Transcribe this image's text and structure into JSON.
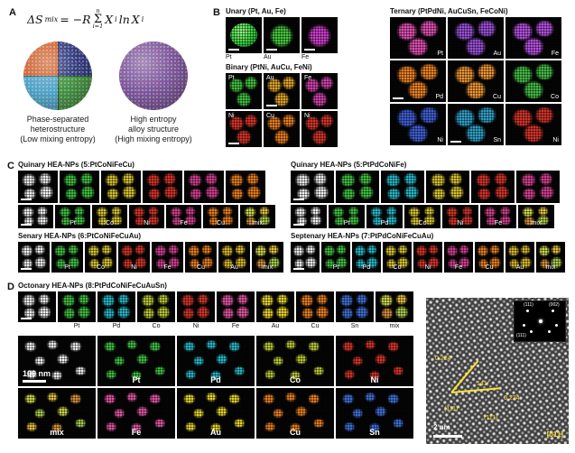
{
  "panel_a": {
    "label": "A",
    "equation": {
      "lhs": "ΔS",
      "lhs_sub": "mix",
      "rel": "= −R",
      "sigma": "Σ",
      "sigma_sup": "n",
      "sigma_sub": "i=1",
      "x1": "X",
      "x1_sub": "i",
      "ln": "ln",
      "x2": "X",
      "x2_sub": "i"
    },
    "left_caption": "Phase-separated\nheterostructure\n(Low mixing entropy)",
    "right_caption": "High entropy\nalloy structure\n(High mixing entropy)"
  },
  "panel_b": {
    "label": "B",
    "unary": {
      "title": "Unary (Pt, Au, Fe)",
      "tiles": [
        {
          "label": "Pt",
          "color": "#35cf3a",
          "type": "solid",
          "scalebar": true
        },
        {
          "label": "Au",
          "color": "#46c83e",
          "scalebar": true
        },
        {
          "label": "Fe",
          "color": "#cc3ecc",
          "scalebar": true
        }
      ]
    },
    "binary": {
      "title": "Binary (PtNi, AuCu, FeNi)",
      "tiles_row1": [
        {
          "label": "Pt",
          "color": "#3fbf3f"
        },
        {
          "label": "Au",
          "color": "#e0a428",
          "scalebar": true
        },
        {
          "label": "Fe",
          "color": "#d041ae"
        }
      ],
      "tiles_row2": [
        {
          "label": "Ni",
          "color": "#d63429",
          "scalebar": true
        },
        {
          "label": "Cu",
          "color": "#e87d1e"
        },
        {
          "label": "Ni",
          "color": "#d63429"
        }
      ]
    },
    "ternary": {
      "title": "Ternary (PtPdNi, AuCuSn, FeCoNi)",
      "tiles_row1": [
        {
          "label": "Pt",
          "color": "#e04fb4"
        },
        {
          "label": "Au",
          "color": "#9a4fd8"
        },
        {
          "label": "Fe",
          "color": "#b44fe0"
        }
      ],
      "tiles_row2": [
        {
          "label": "Pd",
          "color": "#ef8322",
          "scalebar": true
        },
        {
          "label": "Cu",
          "color": "#ef9632"
        },
        {
          "label": "Co",
          "color": "#44bb44"
        }
      ],
      "tiles_row3": [
        {
          "label": "Ni",
          "color": "#3f5fd6"
        },
        {
          "label": "Sn",
          "color": "#2fa0c8",
          "scalebar": true
        },
        {
          "label": "Ni",
          "color": "#d63429"
        }
      ]
    }
  },
  "panel_c": {
    "label": "C",
    "quinary_left": {
      "title": "Quinary HEA-NPs (5:PtCoNiFeCu)",
      "row_top": [
        {
          "type": "haadf",
          "scalebar": true
        },
        {
          "color": "#3fbf3f"
        },
        {
          "color": "#d6c22e"
        },
        {
          "color": "#d63429"
        },
        {
          "color": "#d03f8e"
        },
        {
          "color": "#e87d1e"
        }
      ],
      "row_labeled": [
        {
          "type": "haadf",
          "scalebar": true
        },
        {
          "label": "Pt",
          "color": "#3fbf3f"
        },
        {
          "label": "Co",
          "color": "#d6c22e"
        },
        {
          "label": "Ni",
          "color": "#d63429"
        },
        {
          "label": "Fe",
          "color": "#d03f8e"
        },
        {
          "label": "Cu",
          "color": "#e87d1e"
        },
        {
          "label": "mix",
          "type": "mix"
        }
      ]
    },
    "quinary_right": {
      "title": "Quinary HEA-NPs (5:PtPdCoNiFe)",
      "row_top": [
        {
          "type": "haadf",
          "scalebar": true
        },
        {
          "color": "#3fbf3f"
        },
        {
          "color": "#25b8c8"
        },
        {
          "color": "#d6c22e"
        },
        {
          "color": "#d63429"
        },
        {
          "color": "#d03f8e"
        }
      ],
      "row_labeled": [
        {
          "type": "haadf",
          "scalebar": true
        },
        {
          "label": "Pt",
          "color": "#3fbf3f"
        },
        {
          "label": "Pd",
          "color": "#25b8c8"
        },
        {
          "label": "Co",
          "color": "#d6c22e"
        },
        {
          "label": "Ni",
          "color": "#d63429"
        },
        {
          "label": "Fe",
          "color": "#d03f8e"
        },
        {
          "label": "mix",
          "type": "mix"
        }
      ]
    },
    "senary": {
      "title": "Senary HEA-NPs (6:PtCoNiFeCuAu)",
      "row": [
        {
          "type": "haadf",
          "scalebar": true
        },
        {
          "label": "Pt",
          "color": "#3fbf3f"
        },
        {
          "label": "Co",
          "color": "#d6c22e"
        },
        {
          "label": "Ni",
          "color": "#d63429"
        },
        {
          "label": "Fe",
          "color": "#d03f8e"
        },
        {
          "label": "Cu",
          "color": "#e87d1e"
        },
        {
          "label": "Au",
          "color": "#d8b728"
        },
        {
          "label": "mix",
          "type": "mix"
        }
      ]
    },
    "septenary": {
      "title": "Septenary HEA-NPs (7:PtPdCoNiFeCuAu)",
      "row": [
        {
          "type": "haadf",
          "scalebar": true
        },
        {
          "label": "Pt",
          "color": "#3fbf3f"
        },
        {
          "label": "Pd",
          "color": "#25b8c8"
        },
        {
          "label": "Co",
          "color": "#d6c22e"
        },
        {
          "label": "Ni",
          "color": "#d63429"
        },
        {
          "label": "Fe",
          "color": "#d03f8e"
        },
        {
          "label": "Cu",
          "color": "#e87d1e"
        },
        {
          "label": "Au",
          "color": "#d8b728"
        },
        {
          "label": "mix",
          "type": "mix"
        }
      ]
    }
  },
  "panel_d": {
    "label": "D",
    "title": "Octonary HEA-NPs (8:PtPdCoNiFeCuAuSn)",
    "row": [
      {
        "type": "haadf",
        "scalebar": true
      },
      {
        "label": "Pt",
        "color": "#3fbf3f"
      },
      {
        "label": "Pd",
        "color": "#25b8c8"
      },
      {
        "label": "Co",
        "color": "#b8c832"
      },
      {
        "label": "Ni",
        "color": "#d63429"
      },
      {
        "label": "Fe",
        "color": "#e055a0"
      },
      {
        "label": "Au",
        "color": "#e8d428"
      },
      {
        "label": "Cu",
        "color": "#e87d1e"
      },
      {
        "label": "Sn",
        "color": "#3f6fd6"
      },
      {
        "label": "mix",
        "type": "mix"
      }
    ],
    "grid_row1": [
      {
        "type": "haadf",
        "label": "100 nm",
        "labelpos": "bl",
        "scalebar": true
      },
      {
        "label": "Pt",
        "color": "#3fbf3f"
      },
      {
        "label": "Pd",
        "color": "#25b8c8"
      },
      {
        "label": "Co",
        "color": "#b8c832"
      },
      {
        "label": "Ni",
        "color": "#d63429"
      }
    ],
    "grid_row2": [
      {
        "label": "mix",
        "type": "mix"
      },
      {
        "label": "Fe",
        "color": "#e055a0"
      },
      {
        "label": "Au",
        "color": "#e8d428"
      },
      {
        "label": "Cu",
        "color": "#e87d1e"
      },
      {
        "label": "Sn",
        "color": "#3f6fd6"
      }
    ],
    "hrtem": {
      "scale_label": "2 nm",
      "d1": "0.224",
      "d2": "0.224",
      "angle": "141°",
      "plane1": "(111)",
      "plane2": "(111)",
      "zone": "[011]",
      "fft_labels": [
        "(111)",
        "(002)",
        "(111)"
      ]
    }
  }
}
